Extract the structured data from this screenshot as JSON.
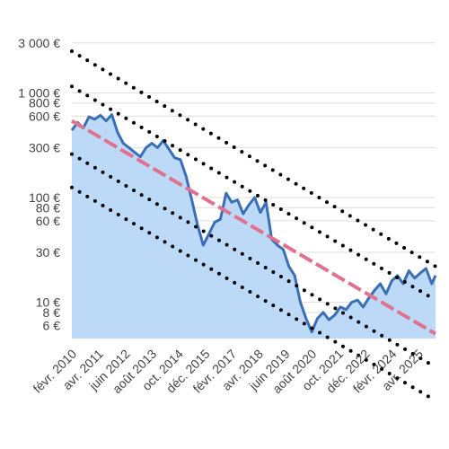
{
  "chart_data": {
    "type": "area",
    "yscale": "log",
    "ylim": [
      4.5,
      3500
    ],
    "xlim": [
      "2010-01",
      "2025-12"
    ],
    "y_ticks": [
      {
        "value": 3000,
        "label": "3 000 €"
      },
      {
        "value": 1000,
        "label": "1 000 €"
      },
      {
        "value": 800,
        "label": "800 €"
      },
      {
        "value": 600,
        "label": "600 €"
      },
      {
        "value": 300,
        "label": "300 €"
      },
      {
        "value": 100,
        "label": "100 €"
      },
      {
        "value": 80,
        "label": "80 €"
      },
      {
        "value": 60,
        "label": "60 €"
      },
      {
        "value": 30,
        "label": "30 €"
      },
      {
        "value": 10,
        "label": "10 €"
      },
      {
        "value": 8,
        "label": "8 €"
      },
      {
        "value": 6,
        "label": "6 €"
      }
    ],
    "x_ticks": [
      {
        "date": "2010-02",
        "label": "févr. 2010"
      },
      {
        "date": "2011-04",
        "label": "avr. 2011"
      },
      {
        "date": "2012-06",
        "label": "juin 2012"
      },
      {
        "date": "2013-08",
        "label": "août 2013"
      },
      {
        "date": "2014-10",
        "label": "oct. 2014"
      },
      {
        "date": "2015-12",
        "label": "déc. 2015"
      },
      {
        "date": "2017-02",
        "label": "févr. 2017"
      },
      {
        "date": "2018-04",
        "label": "avr. 2018"
      },
      {
        "date": "2019-06",
        "label": "juin 2019"
      },
      {
        "date": "2020-08",
        "label": "août 2020"
      },
      {
        "date": "2021-10",
        "label": "oct. 2021"
      },
      {
        "date": "2022-12",
        "label": "déc. 2022"
      },
      {
        "date": "2024-02",
        "label": "févr. 2024"
      },
      {
        "date": "2025-04",
        "label": "avr. 2025"
      }
    ],
    "grid": true,
    "series": [
      {
        "role": "price",
        "color": "#3a6fb6",
        "fill": "#bcd9f7",
        "x": [
          "2010-01",
          "2010-04",
          "2010-07",
          "2010-10",
          "2011-01",
          "2011-04",
          "2011-07",
          "2011-10",
          "2012-01",
          "2012-04",
          "2012-07",
          "2012-10",
          "2013-01",
          "2013-04",
          "2013-07",
          "2013-10",
          "2014-01",
          "2014-04",
          "2014-07",
          "2014-10",
          "2015-01",
          "2015-04",
          "2015-07",
          "2015-10",
          "2016-01",
          "2016-04",
          "2016-07",
          "2016-10",
          "2017-01",
          "2017-04",
          "2017-07",
          "2017-10",
          "2018-01",
          "2018-04",
          "2018-07",
          "2018-10",
          "2019-01",
          "2019-04",
          "2019-07",
          "2019-10",
          "2020-01",
          "2020-04",
          "2020-07",
          "2020-10",
          "2021-01",
          "2021-04",
          "2021-07",
          "2021-10",
          "2022-01",
          "2022-04",
          "2022-07",
          "2022-10",
          "2023-01",
          "2023-04",
          "2023-07",
          "2023-10",
          "2024-01",
          "2024-04",
          "2024-07",
          "2024-10",
          "2025-01",
          "2025-04",
          "2025-07",
          "2025-10",
          "2025-12"
        ],
        "y": [
          440,
          520,
          460,
          590,
          560,
          610,
          540,
          620,
          420,
          330,
          300,
          270,
          245,
          300,
          330,
          300,
          350,
          290,
          240,
          230,
          160,
          95,
          55,
          35,
          45,
          58,
          62,
          110,
          90,
          95,
          70,
          85,
          100,
          72,
          90,
          40,
          35,
          32,
          22,
          18,
          10,
          7,
          5.2,
          7,
          8,
          6.8,
          7.5,
          9,
          8.5,
          10,
          10.5,
          9,
          11,
          13,
          15,
          12,
          16,
          18,
          15,
          20,
          17,
          19,
          21,
          15,
          18
        ]
      },
      {
        "role": "trend",
        "color": "#e0728f",
        "x": [
          "2010-01",
          "2025-12"
        ],
        "y": [
          540,
          5.0
        ]
      },
      {
        "role": "upper-band-2",
        "color": "#000000",
        "x": [
          "2010-01",
          "2025-12"
        ],
        "y": [
          2500,
          22
        ]
      },
      {
        "role": "upper-band-1",
        "color": "#000000",
        "x": [
          "2010-01",
          "2025-12"
        ],
        "y": [
          1150,
          10.5
        ]
      },
      {
        "role": "lower-band-1",
        "color": "#000000",
        "x": [
          "2010-01",
          "2025-12"
        ],
        "y": [
          260,
          2.4
        ]
      },
      {
        "role": "lower-band-2",
        "color": "#000000",
        "x": [
          "2010-01",
          "2025-12"
        ],
        "y": [
          125,
          1.15
        ]
      }
    ]
  }
}
